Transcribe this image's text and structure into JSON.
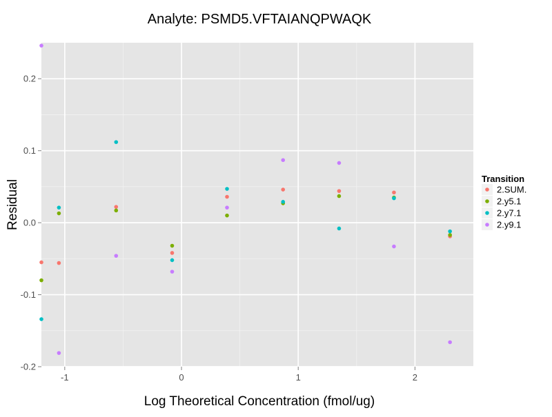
{
  "chart_data": {
    "type": "scatter",
    "title": "Analyte: PSMD5.VFTAIANQPWAQK",
    "xlabel": "Log Theoretical Concentration (fmol/ug)",
    "ylabel": "Residual",
    "xlim": [
      -1.2,
      2.5
    ],
    "ylim": [
      -0.2,
      0.25
    ],
    "x_ticks": [
      -1,
      0,
      1,
      2
    ],
    "x_tick_labels": [
      "-1",
      "0",
      "1",
      "2"
    ],
    "y_ticks": [
      -0.2,
      -0.1,
      0.0,
      0.1,
      0.2
    ],
    "y_tick_labels": [
      "-0.2",
      "-0.1",
      "0.0",
      "0.1",
      "0.2"
    ],
    "grid": true,
    "legend": {
      "title": "Transition",
      "position": "right"
    },
    "series": [
      {
        "name": "2.SUM.",
        "color": "#F8766D",
        "points": [
          {
            "x": -1.2,
            "y": -0.055
          },
          {
            "x": -1.05,
            "y": -0.056
          },
          {
            "x": -0.56,
            "y": 0.022
          },
          {
            "x": -0.08,
            "y": -0.042
          },
          {
            "x": 0.39,
            "y": 0.036
          },
          {
            "x": 0.87,
            "y": 0.046
          },
          {
            "x": 1.35,
            "y": 0.044
          },
          {
            "x": 1.82,
            "y": 0.042
          },
          {
            "x": 2.3,
            "y": -0.019
          }
        ]
      },
      {
        "name": "2.y5.1",
        "color": "#7CAE00",
        "points": [
          {
            "x": -1.2,
            "y": -0.08
          },
          {
            "x": -1.05,
            "y": 0.013
          },
          {
            "x": -0.56,
            "y": 0.017
          },
          {
            "x": -0.08,
            "y": -0.032
          },
          {
            "x": 0.39,
            "y": 0.01
          },
          {
            "x": 0.87,
            "y": 0.027
          },
          {
            "x": 1.35,
            "y": 0.037
          },
          {
            "x": 1.82,
            "y": 0.035
          },
          {
            "x": 2.3,
            "y": -0.017
          }
        ]
      },
      {
        "name": "2.y7.1",
        "color": "#00BFC4",
        "points": [
          {
            "x": -1.2,
            "y": -0.134
          },
          {
            "x": -1.05,
            "y": 0.021
          },
          {
            "x": -0.56,
            "y": 0.112
          },
          {
            "x": -0.08,
            "y": -0.052
          },
          {
            "x": 0.39,
            "y": 0.047
          },
          {
            "x": 0.87,
            "y": 0.029
          },
          {
            "x": 1.35,
            "y": -0.008
          },
          {
            "x": 1.82,
            "y": 0.034
          },
          {
            "x": 2.3,
            "y": -0.012
          }
        ]
      },
      {
        "name": "2.y9.1",
        "color": "#C77CFF",
        "points": [
          {
            "x": -1.2,
            "y": 0.246
          },
          {
            "x": -1.05,
            "y": -0.181
          },
          {
            "x": -0.56,
            "y": -0.046
          },
          {
            "x": -0.08,
            "y": -0.068
          },
          {
            "x": 0.39,
            "y": 0.021
          },
          {
            "x": 0.87,
            "y": 0.087
          },
          {
            "x": 1.35,
            "y": 0.083
          },
          {
            "x": 1.82,
            "y": -0.033
          },
          {
            "x": 2.3,
            "y": -0.166
          }
        ]
      }
    ]
  }
}
